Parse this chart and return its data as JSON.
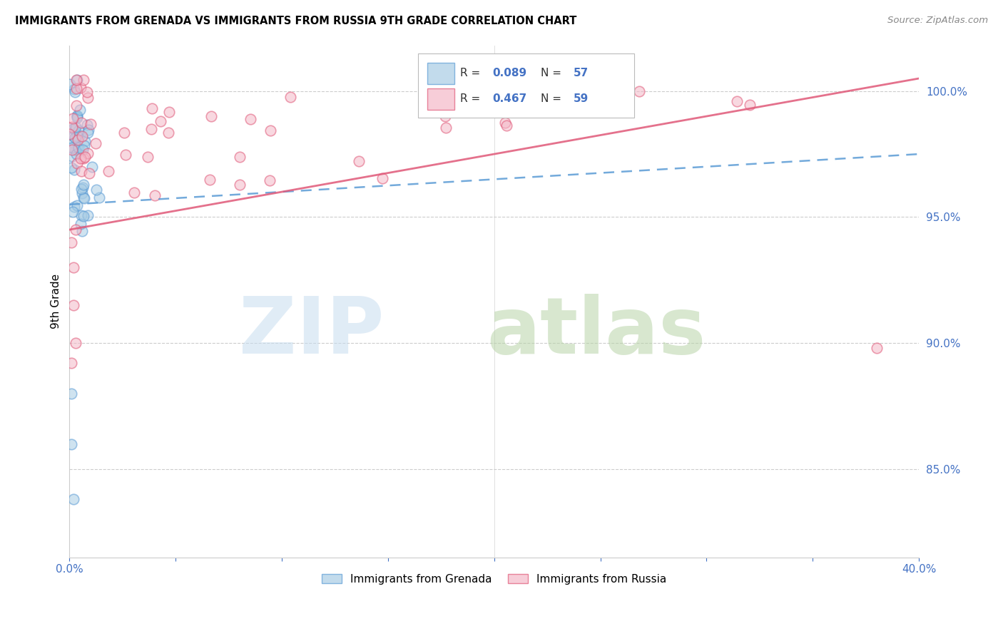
{
  "title": "IMMIGRANTS FROM GRENADA VS IMMIGRANTS FROM RUSSIA 9TH GRADE CORRELATION CHART",
  "source": "Source: ZipAtlas.com",
  "ylabel": "9th Grade",
  "xmin": 0.0,
  "xmax": 0.4,
  "ymin": 0.815,
  "ymax": 1.018,
  "ytick_values": [
    1.0,
    0.95,
    0.9,
    0.85
  ],
  "ytick_labels": [
    "100.0%",
    "95.0%",
    "90.0%",
    "85.0%"
  ],
  "color_grenada_face": "#a8cce4",
  "color_grenada_edge": "#5b9bd5",
  "color_russia_face": "#f4b8c8",
  "color_russia_edge": "#e05878",
  "color_trendline_grenada": "#5b9bd5",
  "color_trendline_russia": "#e05878",
  "grid_color": "#cccccc"
}
